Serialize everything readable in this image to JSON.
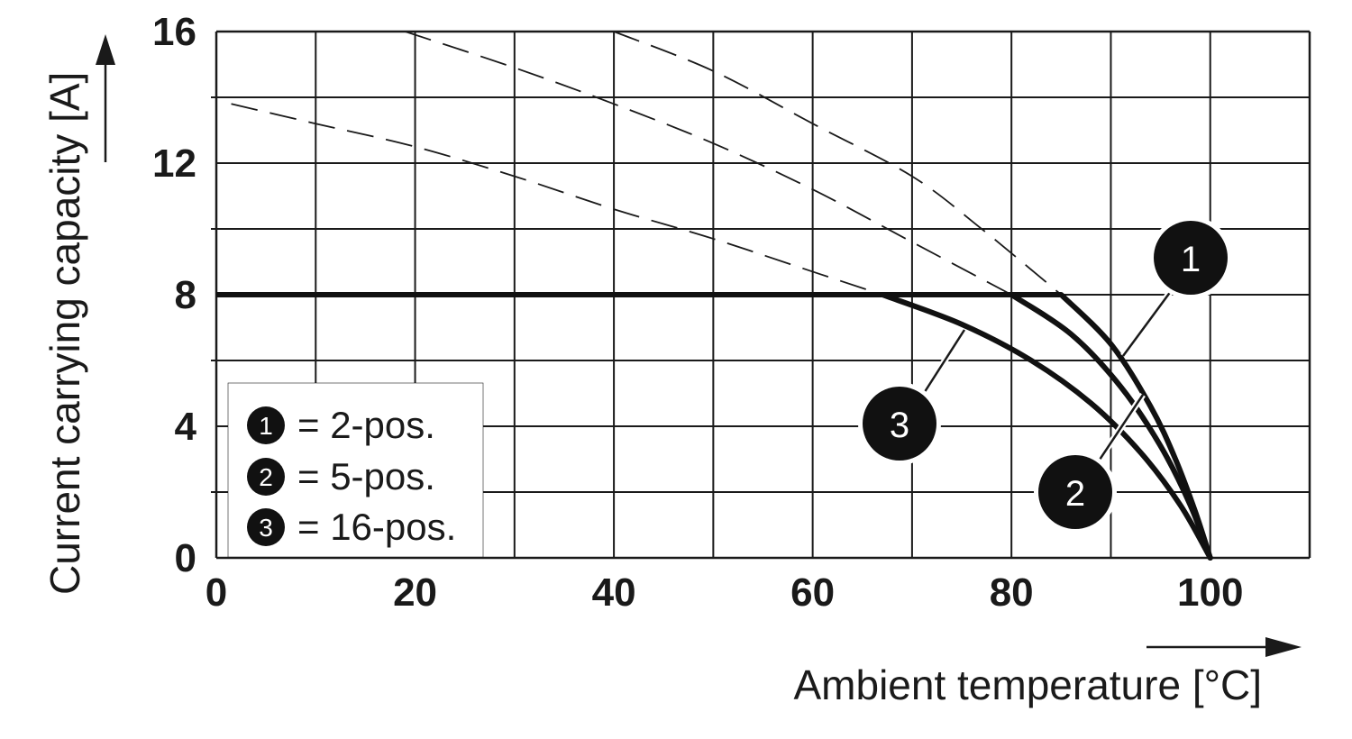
{
  "chart_data": {
    "type": "line",
    "xlabel": "Ambient temperature [°C]",
    "ylabel": "Current carrying capacity [A]",
    "xlim": [
      0,
      110
    ],
    "ylim": [
      0,
      16
    ],
    "x_ticks": [
      "0",
      "20",
      "40",
      "60",
      "80",
      "100"
    ],
    "y_ticks": [
      "0",
      "4",
      "8",
      "12",
      "16"
    ],
    "grid": true,
    "legend_position": "bottom-left",
    "legend": [
      {
        "marker": "1",
        "text": "= 2-pos."
      },
      {
        "marker": "2",
        "text": "= 5-pos."
      },
      {
        "marker": "3",
        "text": "= 16-pos."
      }
    ],
    "series": [
      {
        "marker": "1",
        "limit_plateau": 8,
        "solid": [
          [
            85,
            8
          ],
          [
            90,
            6.5
          ],
          [
            94,
            4.6
          ],
          [
            96.5,
            3
          ],
          [
            98.5,
            1.4
          ],
          [
            100,
            0
          ]
        ],
        "dashed": [
          [
            40,
            16
          ],
          [
            50,
            14.8
          ],
          [
            60,
            13.2
          ],
          [
            70,
            11.6
          ],
          [
            77,
            10
          ],
          [
            85,
            8
          ]
        ]
      },
      {
        "marker": "2",
        "limit_plateau": 8,
        "solid": [
          [
            80,
            8
          ],
          [
            86,
            6.8
          ],
          [
            91,
            5.2
          ],
          [
            95,
            3.4
          ],
          [
            98,
            1.6
          ],
          [
            100,
            0
          ]
        ],
        "dashed": [
          [
            19,
            16
          ],
          [
            30,
            14.9
          ],
          [
            40,
            13.8
          ],
          [
            50,
            12.6
          ],
          [
            60,
            11.2
          ],
          [
            70,
            9.6
          ],
          [
            80,
            8
          ]
        ]
      },
      {
        "marker": "3",
        "limit_plateau": 8,
        "solid": [
          [
            67,
            8
          ],
          [
            75,
            7.1
          ],
          [
            82,
            6.0
          ],
          [
            88,
            4.7
          ],
          [
            93,
            3.2
          ],
          [
            97,
            1.6
          ],
          [
            100,
            0
          ]
        ],
        "dashed": [
          [
            1.5,
            13.8
          ],
          [
            10,
            13.2
          ],
          [
            20,
            12.5
          ],
          [
            30,
            11.6
          ],
          [
            40,
            10.6
          ],
          [
            50,
            9.7
          ],
          [
            60,
            8.7
          ],
          [
            67,
            8
          ]
        ]
      }
    ],
    "plateau": {
      "from_x": 0,
      "value": 8
    }
  }
}
